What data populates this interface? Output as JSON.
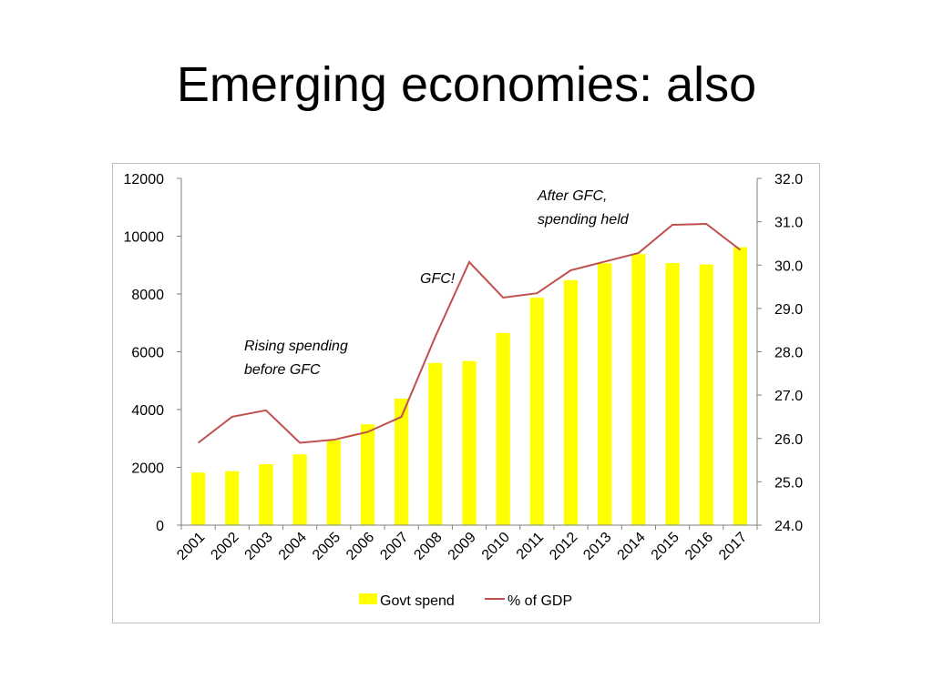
{
  "slide": {
    "title": "Emerging economies: also"
  },
  "chart_data": {
    "type": "bar",
    "categories": [
      "2001",
      "2002",
      "2003",
      "2004",
      "2005",
      "2006",
      "2007",
      "2008",
      "2009",
      "2010",
      "2011",
      "2012",
      "2013",
      "2014",
      "2015",
      "2016",
      "2017"
    ],
    "series": [
      {
        "name": "Govt spend",
        "type": "bar",
        "axis": "left",
        "values": [
          1820,
          1870,
          2110,
          2450,
          2940,
          3490,
          4380,
          5610,
          5680,
          6650,
          7870,
          8480,
          9060,
          9380,
          9070,
          9020,
          9620
        ]
      },
      {
        "name": "% of GDP",
        "type": "line",
        "axis": "right",
        "values": [
          25.9,
          26.5,
          26.65,
          25.9,
          25.97,
          26.15,
          26.5,
          28.35,
          30.07,
          29.25,
          29.35,
          29.88,
          30.08,
          30.28,
          30.93,
          30.95,
          30.35
        ]
      }
    ],
    "y_left": {
      "lim": [
        0,
        12000
      ],
      "ticks": [
        "0",
        "2000",
        "4000",
        "6000",
        "8000",
        "10000",
        "12000"
      ]
    },
    "y_right": {
      "lim": [
        24.0,
        32.0
      ],
      "ticks": [
        "24.0",
        "25.0",
        "26.0",
        "27.0",
        "28.0",
        "29.0",
        "30.0",
        "31.0",
        "32.0"
      ]
    },
    "annotations": [
      {
        "lines": [
          "Rising spending",
          "before GFC"
        ]
      },
      {
        "lines": [
          "GFC!"
        ]
      },
      {
        "lines": [
          "After GFC,",
          "spending held"
        ]
      }
    ],
    "legend": {
      "placement": "bottom",
      "items": [
        "Govt spend",
        "% of GDP"
      ]
    },
    "colors": {
      "bar": "#ffff00",
      "line": "#c0504d",
      "axis": "#7f7f7f",
      "text": "#000000"
    }
  }
}
